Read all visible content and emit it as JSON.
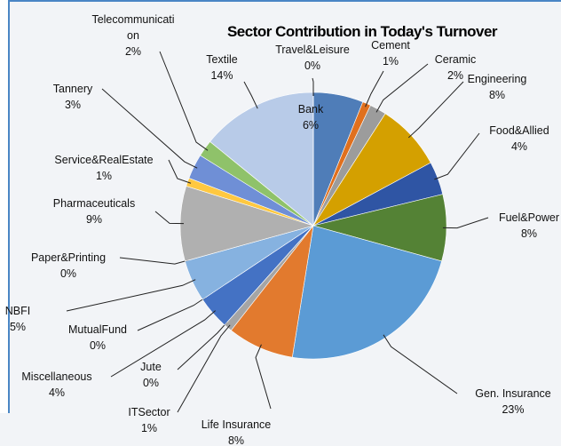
{
  "chart_data": {
    "type": "pie",
    "title": "Sector Contribution in Today's Turnover",
    "categories": [
      "Bank",
      "Cement",
      "Ceramic",
      "Engineering",
      "Food&Allied",
      "Fuel&Power",
      "Gen. Insurance",
      "Life Insurance",
      "ITSector",
      "Jute",
      "Miscellaneous",
      "MutualFund",
      "NBFI",
      "Paper&Printing",
      "Pharmaceuticals",
      "Service&RealEstate",
      "Tannery",
      "Telecommunication",
      "Textile",
      "Travel&Leisure"
    ],
    "values": [
      6,
      1,
      2,
      8,
      4,
      8,
      23,
      8,
      1,
      0,
      4,
      0,
      5,
      0,
      9,
      1,
      3,
      2,
      14,
      0
    ],
    "value_labels": [
      "6%",
      "1%",
      "2%",
      "8%",
      "4%",
      "8%",
      "23%",
      "8%",
      "1%",
      "0%",
      "4%",
      "0%",
      "5%",
      "0%",
      "9%",
      "1%",
      "3%",
      "2%",
      "14%",
      "0%"
    ],
    "colors": [
      "#4f7db8",
      "#e0701e",
      "#9c9c9c",
      "#d4a000",
      "#2f55a4",
      "#548235",
      "#5b9bd5",
      "#e27a2e",
      "#a5a5a5",
      "#ffc000",
      "#4472c4",
      "#70ad47",
      "#86b2e0",
      "#f4a070",
      "#b0b0b0",
      "#ffc840",
      "#6f8fd6",
      "#8fc26a",
      "#b8cbe8",
      "#f08040"
    ]
  }
}
